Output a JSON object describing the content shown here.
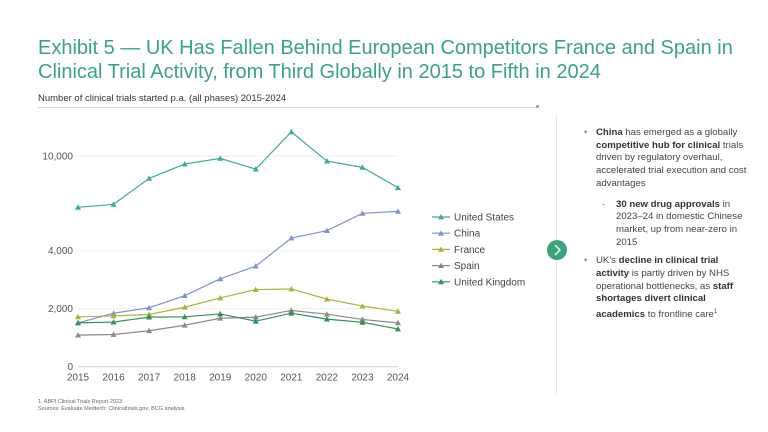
{
  "title": "Exhibit 5 — UK Has Fallen Behind European Competitors France and Spain in Clinical Trial Activity, from Third Globally in 2015 to Fifth in 2024",
  "subtitle": "Number of clinical trials started p.a. (all phases) 2015-2024",
  "chart_data": {
    "type": "line",
    "title": "Number of clinical trials started p.a. (all phases) 2015-2024",
    "xlabel": "",
    "ylabel": "",
    "x": [
      2015,
      2016,
      2017,
      2018,
      2019,
      2020,
      2021,
      2022,
      2023,
      2024
    ],
    "y_ticks": [
      0,
      2000,
      4000,
      10000
    ],
    "y_tick_labels": [
      "0",
      "2,000",
      "4,000",
      "10,000"
    ],
    "y_scale": "broken (non-linear above 4,000)",
    "grid": "horizontal",
    "legend_position": "right",
    "marker": "triangle",
    "series": [
      {
        "name": "United States",
        "color": "#3fae84",
        "values": [
          6750,
          6940,
          8580,
          9490,
          9850,
          9170,
          11530,
          9680,
          9280,
          7990
        ]
      },
      {
        "name": "China",
        "color": "#8090d2",
        "values": [
          1510,
          1845,
          2030,
          2450,
          3030,
          3470,
          4800,
          5270,
          6370,
          6490
        ]
      },
      {
        "name": "France",
        "color": "#a3b83a",
        "values": [
          1720,
          1750,
          1800,
          2050,
          2370,
          2660,
          2680,
          2330,
          2090,
          1910
        ]
      },
      {
        "name": "Spain",
        "color": "#8a8a8a",
        "values": [
          1090,
          1110,
          1240,
          1430,
          1670,
          1710,
          1940,
          1810,
          1630,
          1510
        ]
      },
      {
        "name": "United Kingdom",
        "color": "#2f9256",
        "values": [
          1510,
          1540,
          1710,
          1720,
          1820,
          1570,
          1845,
          1640,
          1530,
          1300
        ]
      }
    ]
  },
  "panel": {
    "b1": {
      "p1": "China",
      "p2": " has emerged as a globally ",
      "p3": "competitive hub for clinical",
      "p4": " trials driven by regulatory overhaul, accelerated trial execution and cost advantages"
    },
    "sub": {
      "p1": "30 new drug approvals",
      "p2": " in 2023–24 in domestic Chinese market, up from near-zero in 2015"
    },
    "b2": {
      "p1": "UK's ",
      "p2": "decline in clinical trial activity",
      "p3": " is partly driven by NHS operational bottlenecks, as ",
      "p4": "staff shortages divert clinical academics",
      "p5": " to frontline care",
      "sup": "1"
    }
  },
  "footnotes": [
    "1. ABPI Clinical Trials Report 2023.",
    "Sources: Evaluate Medtech; Clinicaltrials.gov; BCG analysis."
  ],
  "icons": {
    "next": "chevron-right-icon"
  },
  "colors": {
    "accent": "#3aa57a"
  }
}
